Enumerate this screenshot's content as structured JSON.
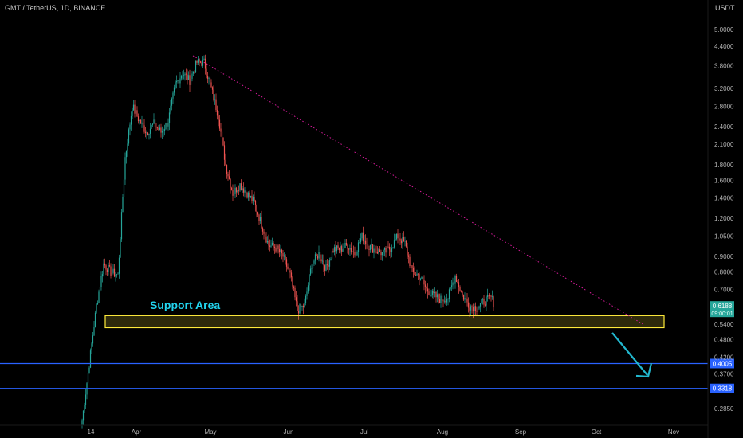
{
  "header": {
    "title": "GMT / TetherUS, 1D, BINANCE",
    "axis_unit": "USDT"
  },
  "chart_data": {
    "type": "candlestick",
    "title": "GMT / TetherUS, 1D, BINANCE",
    "y_scale": "log",
    "y_ticks": [
      "5.0000",
      "4.4000",
      "3.8000",
      "3.2000",
      "2.8000",
      "2.4000",
      "2.1000",
      "1.8000",
      "1.6000",
      "1.4000",
      "1.2000",
      "1.0500",
      "0.9000",
      "0.8000",
      "0.7000",
      "0.5400",
      "0.4800",
      "0.4200",
      "0.3700",
      "0.2850"
    ],
    "x_ticks": [
      "14",
      "Apr",
      "May",
      "Jun",
      "Jul",
      "Aug",
      "Sep",
      "Oct",
      "Nov"
    ],
    "current_price": {
      "value": "0.6188",
      "countdown": "09:00:01",
      "color": "#26a69a"
    },
    "horizontal_levels": [
      {
        "value": "0.4005",
        "color": "#2962ff"
      },
      {
        "value": "0.3318",
        "color": "#2962ff"
      }
    ],
    "support_zone": {
      "label": "Support Area",
      "low": 0.525,
      "high": 0.575,
      "color": "#ffeb3b",
      "label_color": "#22d3ee"
    },
    "trendline": {
      "from": {
        "x": "late Apr",
        "y": 4.1
      },
      "to": {
        "x": "late Oct",
        "y": 0.54
      },
      "color": "#d81b9c",
      "style": "dotted"
    },
    "arrow": {
      "color": "#22b8cf",
      "direction": "down-right"
    },
    "colors": {
      "up": "#26a69a",
      "down": "#ef5350",
      "background": "#000000"
    },
    "price_path": [
      [
        0,
        0.26
      ],
      [
        6,
        0.4
      ],
      [
        12,
        0.62
      ],
      [
        18,
        0.85
      ],
      [
        24,
        0.8
      ],
      [
        30,
        0.78
      ],
      [
        36,
        1.9
      ],
      [
        42,
        2.8
      ],
      [
        48,
        2.5
      ],
      [
        54,
        2.3
      ],
      [
        60,
        2.45
      ],
      [
        66,
        2.3
      ],
      [
        72,
        2.5
      ],
      [
        78,
        3.3
      ],
      [
        84,
        3.6
      ],
      [
        90,
        3.4
      ],
      [
        96,
        3.9
      ],
      [
        102,
        3.9
      ],
      [
        108,
        3.2
      ],
      [
        114,
        2.6
      ],
      [
        120,
        1.8
      ],
      [
        126,
        1.45
      ],
      [
        132,
        1.55
      ],
      [
        138,
        1.45
      ],
      [
        144,
        1.35
      ],
      [
        150,
        1.15
      ],
      [
        156,
        0.98
      ],
      [
        162,
        0.96
      ],
      [
        168,
        0.9
      ],
      [
        174,
        0.78
      ],
      [
        180,
        0.6
      ],
      [
        186,
        0.62
      ],
      [
        192,
        0.85
      ],
      [
        198,
        0.92
      ],
      [
        204,
        0.82
      ],
      [
        210,
        0.95
      ],
      [
        216,
        0.95
      ],
      [
        222,
        0.98
      ],
      [
        228,
        0.92
      ],
      [
        234,
        1.05
      ],
      [
        240,
        0.97
      ],
      [
        246,
        0.94
      ],
      [
        252,
        0.92
      ],
      [
        258,
        0.96
      ],
      [
        264,
        1.05
      ],
      [
        270,
        0.99
      ],
      [
        276,
        0.8
      ],
      [
        282,
        0.78
      ],
      [
        288,
        0.7
      ],
      [
        294,
        0.67
      ],
      [
        300,
        0.65
      ],
      [
        306,
        0.66
      ],
      [
        312,
        0.78
      ],
      [
        318,
        0.67
      ],
      [
        324,
        0.62
      ],
      [
        330,
        0.61
      ],
      [
        336,
        0.64
      ],
      [
        342,
        0.66
      ],
      [
        345,
        0.62
      ]
    ]
  }
}
